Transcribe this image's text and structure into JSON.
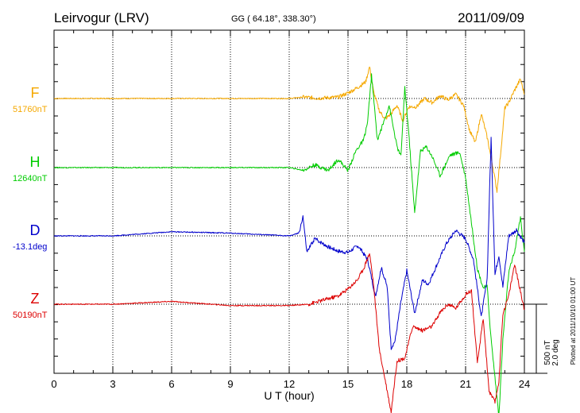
{
  "header": {
    "station": "Leirvogur (LRV)",
    "coords": "GG ( 64.18°, 338.30°)",
    "date": "2011/09/09"
  },
  "footer": {
    "plotted": "Plotted at 2011/10/10 01:00 UT"
  },
  "chart_data": {
    "type": "line",
    "xlabel": "U T (hour)",
    "xlim": [
      0,
      24
    ],
    "xticks": [
      "0",
      "3",
      "6",
      "9",
      "12",
      "15",
      "18",
      "21",
      "24"
    ],
    "scale_bar": {
      "line1": "500 nT",
      "line2": "2.0 deg"
    },
    "grid": true,
    "series": [
      {
        "name": "F",
        "baseline_label": "51760nT",
        "color": "#f5a800",
        "x": [
          0,
          3,
          6,
          9,
          12,
          12.7,
          13.5,
          14.5,
          15,
          15.5,
          15.9,
          16.1,
          16.3,
          16.6,
          16.9,
          17.2,
          17.5,
          17.8,
          18.1,
          18.5,
          18.9,
          19.3,
          19.7,
          20.1,
          20.5,
          20.9,
          21.2,
          21.5,
          21.8,
          22.1,
          22.4,
          22.6,
          22.8,
          23.0,
          23.2,
          23.5,
          23.8,
          24
        ],
        "y": [
          0,
          0,
          0,
          0,
          0,
          10,
          2,
          10,
          40,
          80,
          120,
          230,
          50,
          -90,
          -150,
          -110,
          -50,
          -160,
          -60,
          -60,
          0,
          -30,
          20,
          -10,
          30,
          -50,
          -230,
          -320,
          -110,
          -280,
          -500,
          -670,
          -380,
          -70,
          -30,
          60,
          140,
          30
        ]
      },
      {
        "name": "H",
        "baseline_label": "12640nT",
        "color": "#00cc00",
        "x": [
          0,
          3,
          6,
          9,
          12,
          12.7,
          13.3,
          14,
          14.5,
          15,
          15.4,
          15.8,
          16.0,
          16.2,
          16.5,
          16.8,
          17.1,
          17.5,
          17.7,
          17.9,
          18.1,
          18.4,
          18.7,
          19.0,
          19.3,
          19.7,
          20.2,
          20.7,
          21.0,
          21.3,
          21.6,
          21.9,
          22.1,
          22.3,
          22.5,
          22.7,
          22.9,
          23.2,
          23.5,
          23.8,
          24
        ],
        "y": [
          0,
          0,
          0,
          0,
          0,
          -20,
          20,
          -20,
          60,
          -20,
          120,
          200,
          330,
          670,
          200,
          320,
          450,
          150,
          80,
          580,
          250,
          -330,
          120,
          150,
          80,
          -60,
          90,
          110,
          -70,
          -400,
          -730,
          -870,
          -860,
          -1240,
          -1520,
          -1800,
          -1250,
          -760,
          -610,
          -360,
          -610
        ]
      },
      {
        "name": "D",
        "baseline_label": "-13.1deg",
        "color": "#0000cc",
        "x": [
          0,
          3,
          6,
          9,
          12,
          12.5,
          12.7,
          12.9,
          13.3,
          14,
          14.5,
          15,
          15.5,
          16,
          16.4,
          16.7,
          17.0,
          17.2,
          17.4,
          17.7,
          18.0,
          18.4,
          18.8,
          19.1,
          19.5,
          20,
          20.5,
          21,
          21.4,
          21.8,
          22.1,
          22.3,
          22.5,
          22.7,
          22.9,
          23.2,
          23.6,
          24
        ],
        "y": [
          0,
          0,
          30,
          20,
          0,
          20,
          140,
          -120,
          -20,
          -80,
          -110,
          -120,
          -70,
          -170,
          -440,
          -230,
          -370,
          -810,
          -760,
          -480,
          -250,
          -560,
          -320,
          -350,
          -220,
          -60,
          40,
          -20,
          -170,
          -590,
          -310,
          710,
          -280,
          -140,
          -370,
          0,
          40,
          -50
        ]
      },
      {
        "name": "Z",
        "baseline_label": "50190nT",
        "color": "#dd0000",
        "x": [
          0,
          3,
          6,
          9,
          12,
          13,
          14,
          14.5,
          15,
          15.5,
          15.8,
          16.1,
          16.3,
          16.6,
          16.9,
          17.2,
          17.5,
          17.9,
          18.3,
          18.8,
          19.3,
          19.7,
          20.1,
          20.5,
          21,
          21.3,
          21.6,
          21.9,
          22.2,
          22.5,
          22.7,
          22.9,
          23.2,
          23.5,
          23.8,
          24
        ],
        "y": [
          0,
          0,
          20,
          -10,
          -10,
          0,
          40,
          60,
          110,
          180,
          260,
          370,
          150,
          -330,
          -550,
          -780,
          -410,
          -390,
          -160,
          -190,
          -160,
          -60,
          0,
          -30,
          70,
          100,
          -430,
          -100,
          -630,
          -710,
          -560,
          -70,
          60,
          290,
          90,
          -40
        ]
      }
    ]
  }
}
